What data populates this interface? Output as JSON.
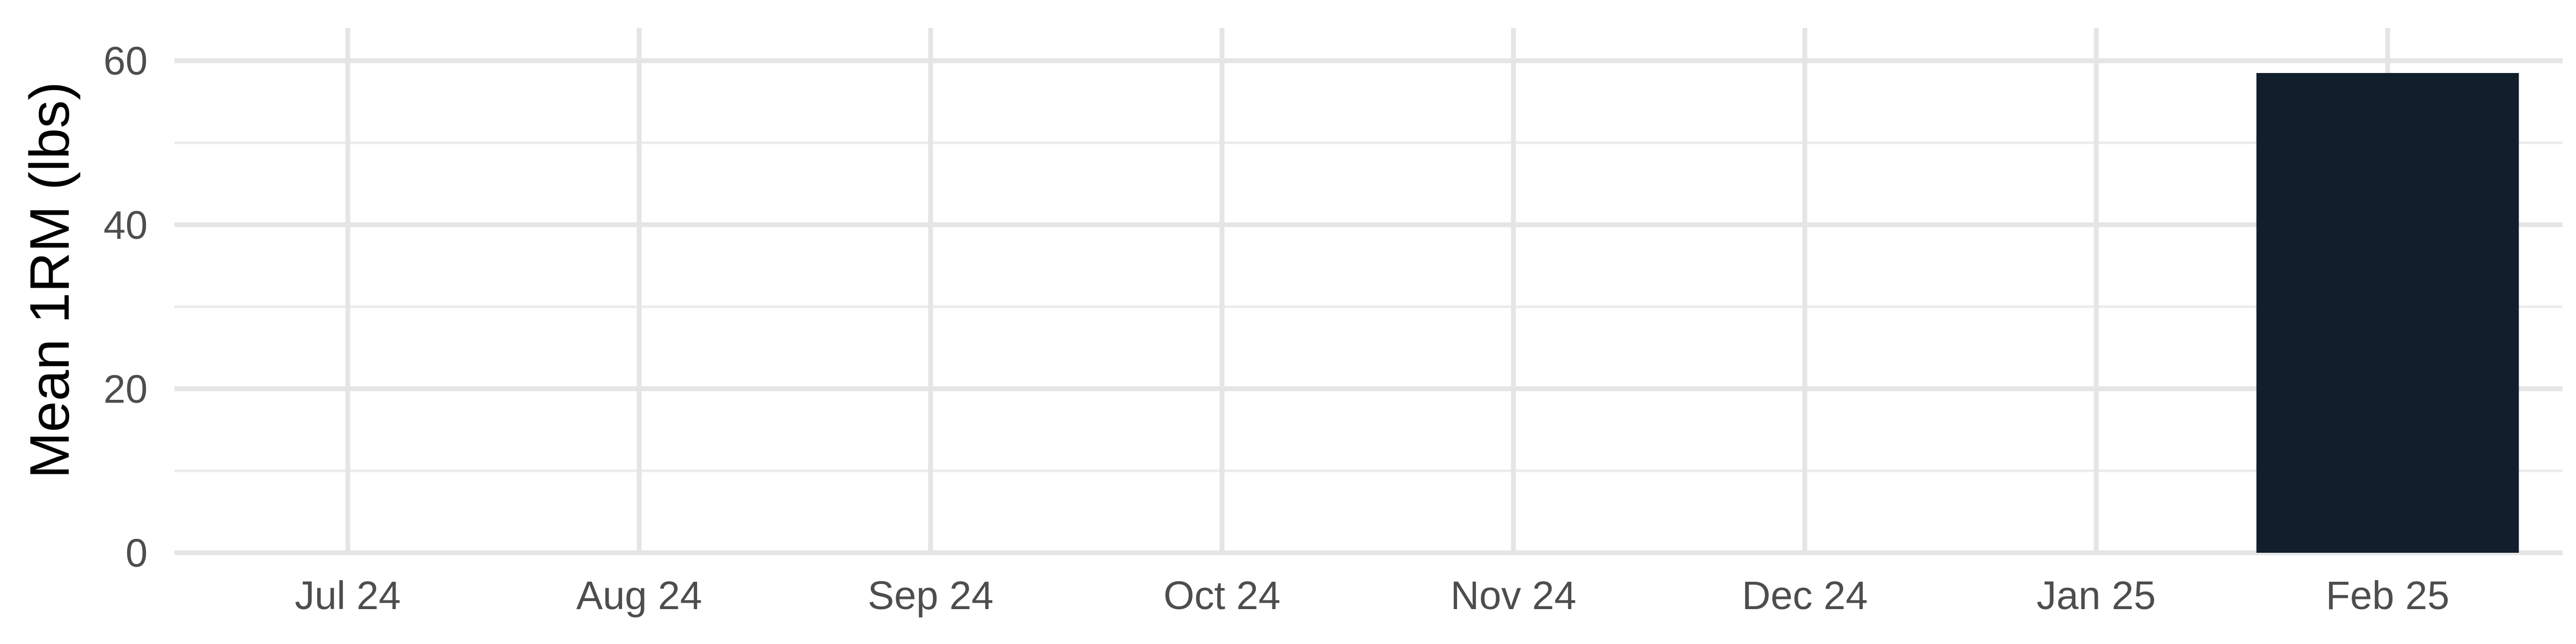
{
  "chart_data": {
    "type": "bar",
    "title": "",
    "xlabel": "",
    "ylabel": "Mean 1RM (lbs)",
    "categories": [
      "Jul 24",
      "Aug 24",
      "Sep 24",
      "Oct 24",
      "Nov 24",
      "Dec 24",
      "Jan 25",
      "Feb 25"
    ],
    "bars": [
      {
        "month": "Feb 25",
        "value": 58.5
      }
    ],
    "ylim": [
      0,
      64
    ],
    "yticks": [
      0,
      20,
      40,
      60
    ],
    "bar_color": "#111e2b",
    "grid": true,
    "legend": "none"
  }
}
